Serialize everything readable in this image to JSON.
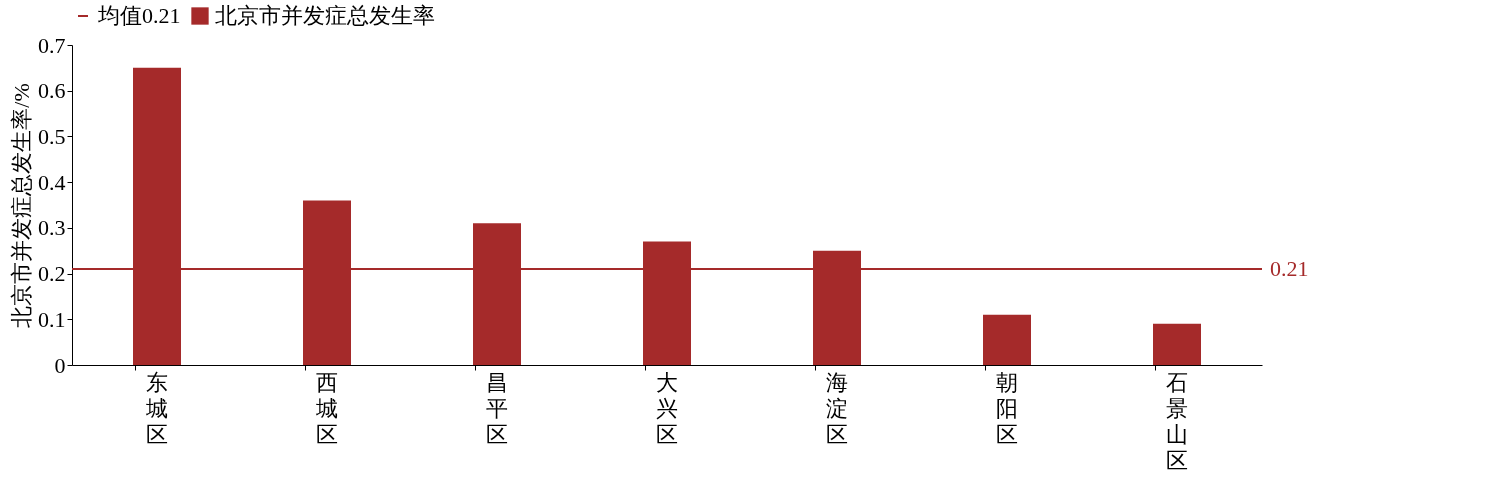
{
  "chart_data": {
    "type": "bar",
    "ylabel": "北京市并发症总发生率/%",
    "categories": [
      "东城区",
      "西城区",
      "昌平区",
      "大兴区",
      "海淀区",
      "朝阳区",
      "石景山区"
    ],
    "series": [
      {
        "name": "北京市并发症总发生率",
        "color": "#a52a2a",
        "values": [
          0.65,
          0.36,
          0.31,
          0.27,
          0.25,
          0.11,
          0.09
        ]
      }
    ],
    "ylim": [
      0,
      0.7
    ],
    "yticks": [
      0,
      0.1,
      0.2,
      0.3,
      0.4,
      0.5,
      0.6,
      0.7
    ],
    "ref_lines": [
      {
        "axis": "y",
        "value": 0.21,
        "label": "均值0.21",
        "color": "#a52a2a"
      }
    ],
    "annotations": [
      "0.21"
    ],
    "legend": "top",
    "grid": false
  }
}
